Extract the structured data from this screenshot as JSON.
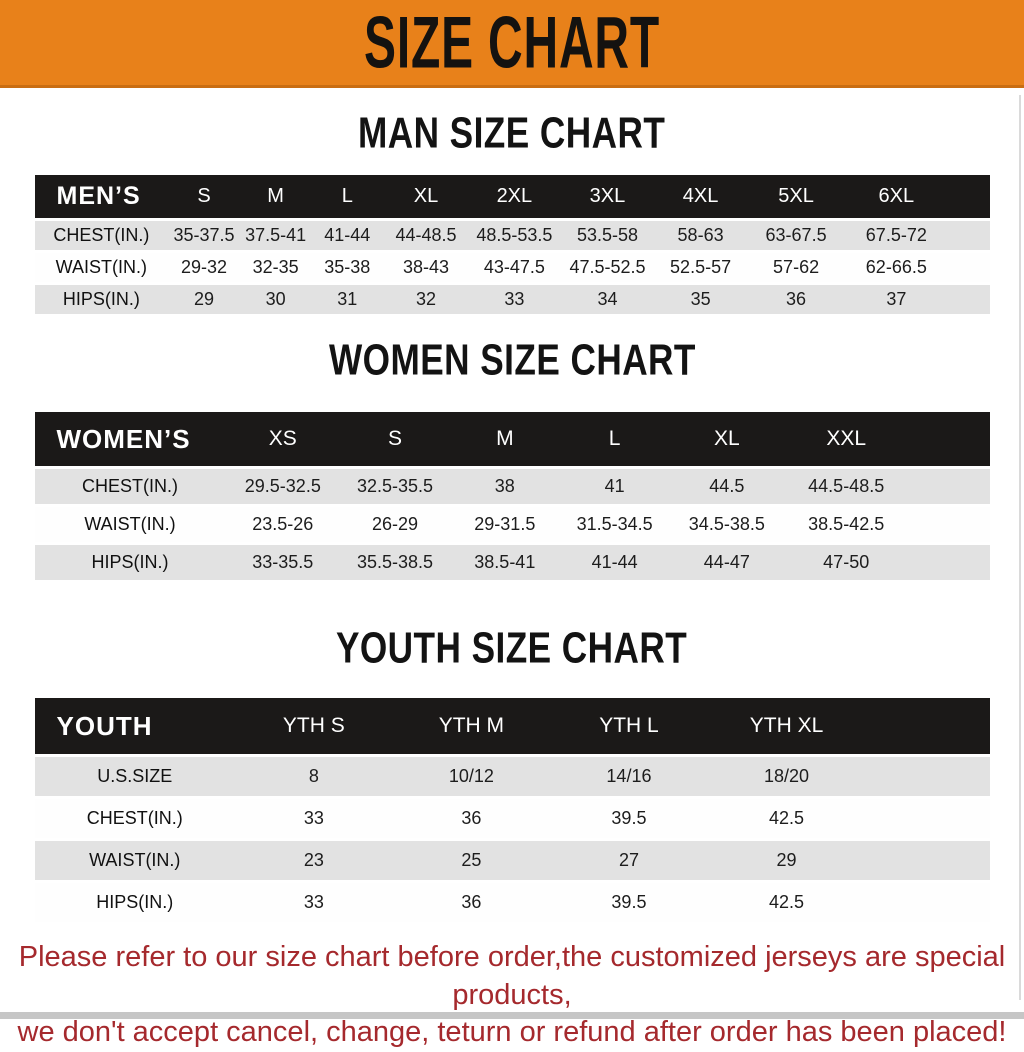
{
  "banner": {
    "title": "SIZE CHART"
  },
  "sections": [
    {
      "id": "men",
      "title": "MAN SIZE CHART",
      "table": {
        "label": "MEN’S",
        "columns": [
          "S",
          "M",
          "L",
          "XL",
          "2XL",
          "3XL",
          "4XL",
          "5XL",
          "6XL"
        ],
        "rows": [
          {
            "label": "CHEST(IN.)",
            "values": [
              "35-37.5",
              "37.5-41",
              "41-44",
              "44-48.5",
              "48.5-53.5",
              "53.5-58",
              "58-63",
              "63-67.5",
              "67.5-72"
            ]
          },
          {
            "label": "WAIST(IN.)",
            "values": [
              "29-32",
              "32-35",
              "35-38",
              "38-43",
              "43-47.5",
              "47.5-52.5",
              "52.5-57",
              "57-62",
              "62-66.5"
            ]
          },
          {
            "label": "HIPS(IN.)",
            "values": [
              "29",
              "30",
              "31",
              "32",
              "33",
              "34",
              "35",
              "36",
              "37"
            ]
          }
        ]
      }
    },
    {
      "id": "women",
      "title": "WOMEN SIZE CHART",
      "table": {
        "label": "WOMEN’S",
        "columns": [
          "XS",
          "S",
          "M",
          "L",
          "XL",
          "XXL"
        ],
        "rows": [
          {
            "label": "CHEST(IN.)",
            "values": [
              "29.5-32.5",
              "32.5-35.5",
              "38",
              "41",
              "44.5",
              "44.5-48.5"
            ]
          },
          {
            "label": "WAIST(IN.)",
            "values": [
              "23.5-26",
              "26-29",
              "29-31.5",
              "31.5-34.5",
              "34.5-38.5",
              "38.5-42.5"
            ]
          },
          {
            "label": "HIPS(IN.)",
            "values": [
              "33-35.5",
              "35.5-38.5",
              "38.5-41",
              "41-44",
              "44-47",
              "47-50"
            ]
          }
        ]
      }
    },
    {
      "id": "youth",
      "title": "YOUTH SIZE CHART",
      "table": {
        "label": "YOUTH",
        "columns": [
          "YTH S",
          "YTH M",
          "YTH L",
          "YTH XL"
        ],
        "rows": [
          {
            "label": "U.S.SIZE",
            "values": [
              "8",
              "10/12",
              "14/16",
              "18/20"
            ]
          },
          {
            "label": "CHEST(IN.)",
            "values": [
              "33",
              "36",
              "39.5",
              "42.5"
            ]
          },
          {
            "label": "WAIST(IN.)",
            "values": [
              "23",
              "25",
              "27",
              "29"
            ]
          },
          {
            "label": "HIPS(IN.)",
            "values": [
              "33",
              "36",
              "39.5",
              "42.5"
            ]
          }
        ]
      }
    }
  ],
  "footer": {
    "line1": "Please refer to our size chart before order,the customized jerseys are special products,",
    "line2": "we don't accept cancel, change, teturn or refund after order has been placed!"
  },
  "colors": {
    "banner_bg": "#E8811A",
    "header_bar": "#1B1918",
    "row_shade": "#E2E2E2",
    "footer_text": "#A5292D",
    "bottom_bar": "#C6C6C6"
  }
}
